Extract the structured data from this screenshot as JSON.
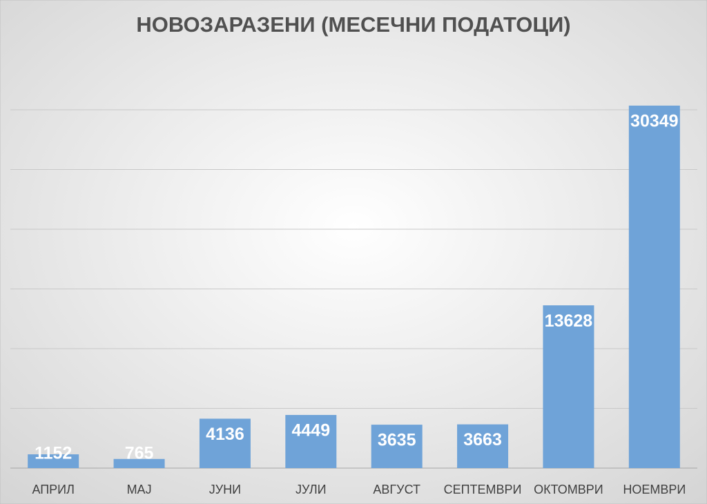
{
  "chart_data": {
    "type": "bar",
    "title": "НОВОЗАРАЗЕНИ (МЕСЕЧНИ ПОДАТОЦИ)",
    "categories": [
      "АПРИЛ",
      "МАЈ",
      "ЈУНИ",
      "ЈУЛИ",
      "АВГУСТ",
      "СЕПТЕМВРИ",
      "ОКТОМВРИ",
      "НОЕМВРИ"
    ],
    "values": [
      1152,
      765,
      4136,
      4449,
      3635,
      3663,
      13628,
      30349
    ],
    "color": "#6fa3d8",
    "ylim": [
      0,
      35000
    ],
    "gridlines": [
      0,
      5000,
      10000,
      15000,
      20000,
      25000,
      30000
    ],
    "grid": true
  }
}
